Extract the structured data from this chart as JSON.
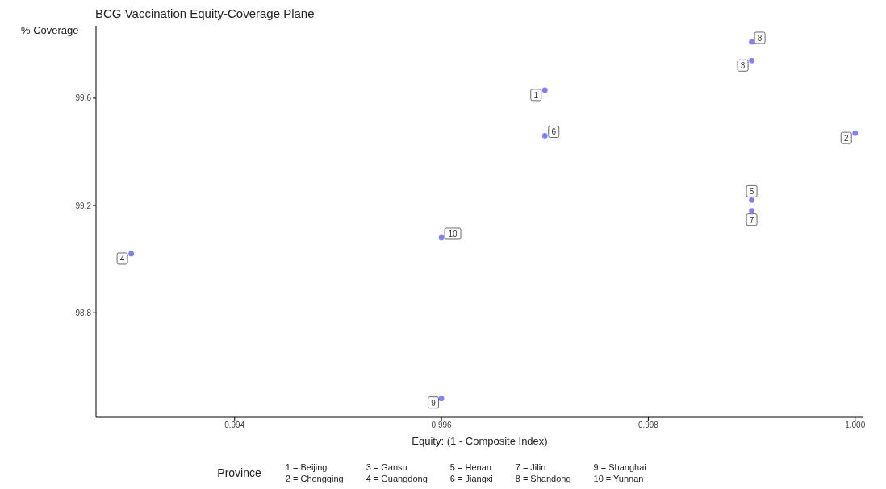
{
  "chart_data": {
    "type": "scatter",
    "title": "BCG Vaccination Equity-Coverage Plane",
    "xlabel": "Equity: (1 - Composite Index)",
    "ylabel": "% Coverage",
    "legend_title": "Province",
    "grid": false,
    "marker": "circle",
    "x": [
      0.997,
      1.0,
      0.999,
      0.993,
      0.999,
      0.997,
      0.999,
      0.999,
      0.996,
      0.996
    ],
    "series": [
      {
        "color": "#8080ff",
        "values": [
          99.63,
          99.47,
          99.74,
          99.02,
          99.22,
          99.46,
          99.18,
          99.81,
          98.48,
          99.08
        ]
      }
    ],
    "xlim": [
      0.99266,
      1.00008
    ],
    "xticks": [
      0.994,
      0.996,
      0.998,
      {
        "value": 1.0,
        "label": "1.000"
      }
    ],
    "ylim": [
      98.41,
      99.87
    ],
    "yticks": [
      98.8,
      99.2,
      99.6
    ],
    "annotations": [
      {
        "text": "1",
        "x": 0.997,
        "y": 99.63
      },
      {
        "text": "2",
        "x": 1.0,
        "y": 99.47
      },
      {
        "text": "3",
        "x": 0.999,
        "y": 99.74
      },
      {
        "text": "4",
        "x": 0.993,
        "y": 99.02
      },
      {
        "text": "5",
        "x": 0.999,
        "y": 99.22
      },
      {
        "text": "6",
        "x": 0.997,
        "y": 99.46
      },
      {
        "text": "7",
        "x": 0.999,
        "y": 99.18
      },
      {
        "text": "8",
        "x": 0.999,
        "y": 99.81
      },
      {
        "text": "9",
        "x": 0.996,
        "y": 98.48
      },
      {
        "text": "10",
        "x": 0.996,
        "y": 99.08
      },
      "1 = Beijing",
      "2 = Chongqing",
      "3 = Gansu",
      "4 = Guangdong",
      "5 = Henan",
      "6 = Jiangxi",
      "7 = Jilin",
      "8 = Shandong",
      "9 = Shanghai",
      "10 = Yunnan"
    ]
  }
}
